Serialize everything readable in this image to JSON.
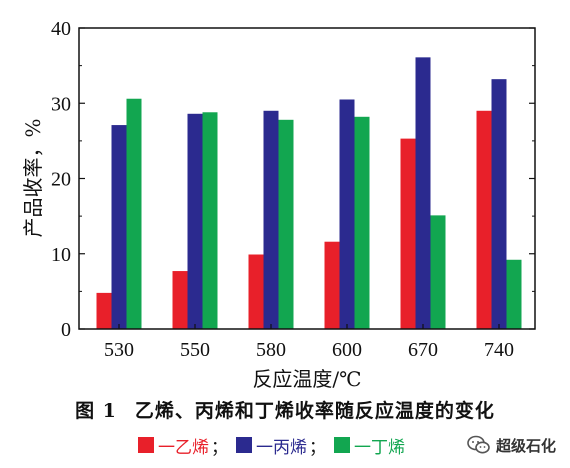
{
  "chart_data": {
    "type": "bar",
    "categories": [
      "530",
      "550",
      "580",
      "600",
      "670",
      "740"
    ],
    "series": [
      {
        "name": "一乙烯",
        "color": "#e8202a",
        "values": [
          4.8,
          7.7,
          9.9,
          11.6,
          25.3,
          29.0
        ]
      },
      {
        "name": "一丙烯",
        "color": "#2b2a8f",
        "values": [
          27.1,
          28.6,
          29.0,
          30.5,
          36.1,
          33.2
        ]
      },
      {
        "name": "一丁烯",
        "color": "#12a650",
        "values": [
          30.6,
          28.8,
          27.8,
          28.2,
          15.1,
          9.2
        ]
      }
    ],
    "xlabel": "反应温度/℃",
    "ylabel": "产品收率，%",
    "ylim": [
      0,
      40
    ],
    "yticks": [
      "0",
      "10",
      "20",
      "30",
      "40"
    ],
    "grid": false,
    "legend_position": "bottom"
  },
  "caption": {
    "figure_number": "图 1",
    "text": "乙烯、丙烯和丁烯收率随反应温度的变化"
  },
  "legend": {
    "separator": "；"
  },
  "watermark": {
    "text": "超级石化",
    "icon": "wechat-icon"
  }
}
